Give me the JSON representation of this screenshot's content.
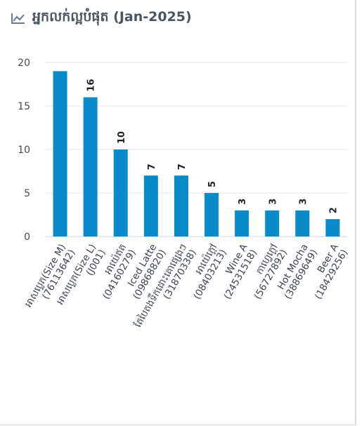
{
  "widget": {
    "title": "អ្នកលក់ល្អបំផុត (Jan-2025)",
    "icon": "line-chart-icon",
    "accent_color": "#6b7a90"
  },
  "chart_data": {
    "type": "bar",
    "bar_color": "#0a8ac9",
    "grid": true,
    "ylim": [
      0,
      20
    ],
    "yticks": [
      0,
      5,
      10,
      15,
      20
    ],
    "categories": [
      [
        "អាសប្លេភ(Size M)",
        "(76113642)"
      ],
      [
        "អាសប្លេភ(Size L)",
        "(J001)"
      ],
      [
        "អាយ៉េឥត",
        "(04160279)"
      ],
      [
        "Iced Latte",
        "(09868820)"
      ],
      [
        "តែបៃតងទឹកដោះគោផ្សេងៗ",
        "(31870338)"
      ],
      [
        "អាយ៉េក្តៅ",
        "(08403213)"
      ],
      [
        "Wine A",
        "(24531518)"
      ],
      [
        "កាហ្វេក្តៅ",
        "(56727892)"
      ],
      [
        "Hot Mocha",
        "(38869649)"
      ],
      [
        "Beer A",
        "(18429256)"
      ]
    ],
    "values": [
      19,
      16,
      10,
      7,
      7,
      5,
      3,
      3,
      3,
      2
    ],
    "data_labels": [
      "",
      "16",
      "10",
      "7",
      "7",
      "5",
      "3",
      "3",
      "3",
      "2"
    ]
  }
}
